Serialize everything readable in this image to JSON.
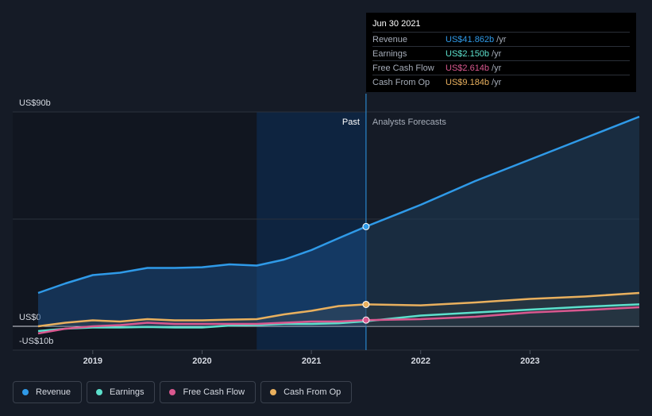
{
  "tooltip": {
    "date": "Jun 30 2021",
    "rows": [
      {
        "label": "Revenue",
        "value": "US$41.862b",
        "unit": "/yr",
        "color": "#2f9ae8"
      },
      {
        "label": "Earnings",
        "value": "US$2.150b",
        "unit": "/yr",
        "color": "#5ce0cc"
      },
      {
        "label": "Free Cash Flow",
        "value": "US$2.614b",
        "unit": "/yr",
        "color": "#d9588f"
      },
      {
        "label": "Cash From Op",
        "value": "US$9.184b",
        "unit": "/yr",
        "color": "#e9b05e"
      }
    ]
  },
  "legend": [
    {
      "label": "Revenue",
      "color": "#2f9ae8"
    },
    {
      "label": "Earnings",
      "color": "#5ce0cc"
    },
    {
      "label": "Free Cash Flow",
      "color": "#d9588f"
    },
    {
      "label": "Cash From Op",
      "color": "#e9b05e"
    }
  ],
  "chart_data": {
    "type": "line",
    "y_ticks": [
      {
        "value": 90,
        "label": "US$90b"
      },
      {
        "value": 0,
        "label": "US$0"
      },
      {
        "value": -10,
        "label": "-US$10b"
      }
    ],
    "x_ticks": [
      {
        "value": 2019,
        "label": "2019"
      },
      {
        "value": 2020,
        "label": "2020"
      },
      {
        "value": 2021,
        "label": "2021"
      },
      {
        "value": 2022,
        "label": "2022"
      },
      {
        "value": 2023,
        "label": "2023"
      }
    ],
    "xlim": [
      2018.5,
      2024.0
    ],
    "ylim": [
      -10,
      90
    ],
    "divider_x": 2021.5,
    "past_label": "Past",
    "forecast_label": "Analysts Forecasts",
    "highlight_range": [
      2020.5,
      2021.5
    ],
    "series": [
      {
        "name": "Revenue",
        "color": "#2f9ae8",
        "past": [
          [
            2018.5,
            14
          ],
          [
            2018.75,
            18
          ],
          [
            2019.0,
            21.5
          ],
          [
            2019.25,
            22.5
          ],
          [
            2019.5,
            24.5
          ],
          [
            2019.75,
            24.5
          ],
          [
            2020.0,
            24.8
          ],
          [
            2020.25,
            26
          ],
          [
            2020.5,
            25.5
          ],
          [
            2020.75,
            28
          ],
          [
            2021.0,
            32
          ],
          [
            2021.25,
            37
          ],
          [
            2021.5,
            41.862
          ]
        ],
        "forecast": [
          [
            2021.5,
            41.862
          ],
          [
            2022.0,
            51
          ],
          [
            2022.5,
            61
          ],
          [
            2023.0,
            70
          ],
          [
            2023.5,
            79
          ],
          [
            2024.0,
            88
          ]
        ],
        "marker": [
          2021.5,
          41.862
        ]
      },
      {
        "name": "Earnings",
        "color": "#5ce0cc",
        "past": [
          [
            2018.5,
            -2
          ],
          [
            2018.75,
            -1
          ],
          [
            2019.0,
            -0.5
          ],
          [
            2019.25,
            -0.5
          ],
          [
            2019.5,
            -0.3
          ],
          [
            2019.75,
            -0.5
          ],
          [
            2020.0,
            -0.5
          ],
          [
            2020.25,
            0.3
          ],
          [
            2020.5,
            0.5
          ],
          [
            2020.75,
            1
          ],
          [
            2021.0,
            1
          ],
          [
            2021.25,
            1.3
          ],
          [
            2021.5,
            2.15
          ]
        ],
        "forecast": [
          [
            2021.5,
            2.15
          ],
          [
            2022.0,
            4.5
          ],
          [
            2022.5,
            5.8
          ],
          [
            2023.0,
            7
          ],
          [
            2023.5,
            8.2
          ],
          [
            2024.0,
            9.2
          ]
        ]
      },
      {
        "name": "Free Cash Flow",
        "color": "#d9588f",
        "past": [
          [
            2018.5,
            -3
          ],
          [
            2018.75,
            -1
          ],
          [
            2019.0,
            0
          ],
          [
            2019.25,
            0.5
          ],
          [
            2019.5,
            1.5
          ],
          [
            2019.75,
            1
          ],
          [
            2020.0,
            1
          ],
          [
            2020.25,
            1
          ],
          [
            2020.5,
            1
          ],
          [
            2020.75,
            1.5
          ],
          [
            2021.0,
            2
          ],
          [
            2021.25,
            2
          ],
          [
            2021.5,
            2.614
          ]
        ],
        "forecast": [
          [
            2021.5,
            2.614
          ],
          [
            2022.0,
            3
          ],
          [
            2022.5,
            4
          ],
          [
            2023.0,
            5.8
          ],
          [
            2023.5,
            6.8
          ],
          [
            2024.0,
            8
          ]
        ]
      },
      {
        "name": "Cash From Op",
        "color": "#e9b05e",
        "past": [
          [
            2018.5,
            0
          ],
          [
            2018.75,
            1.5
          ],
          [
            2019.0,
            2.5
          ],
          [
            2019.25,
            2
          ],
          [
            2019.5,
            3
          ],
          [
            2019.75,
            2.5
          ],
          [
            2020.0,
            2.5
          ],
          [
            2020.25,
            2.8
          ],
          [
            2020.5,
            3
          ],
          [
            2020.75,
            5
          ],
          [
            2021.0,
            6.5
          ],
          [
            2021.25,
            8.5
          ],
          [
            2021.5,
            9.184
          ]
        ],
        "forecast": [
          [
            2021.5,
            9.184
          ],
          [
            2022.0,
            8.8
          ],
          [
            2022.5,
            10
          ],
          [
            2023.0,
            11.5
          ],
          [
            2023.5,
            12.5
          ],
          [
            2024.0,
            14
          ]
        ],
        "marker": [
          2021.5,
          9.184
        ]
      }
    ]
  }
}
